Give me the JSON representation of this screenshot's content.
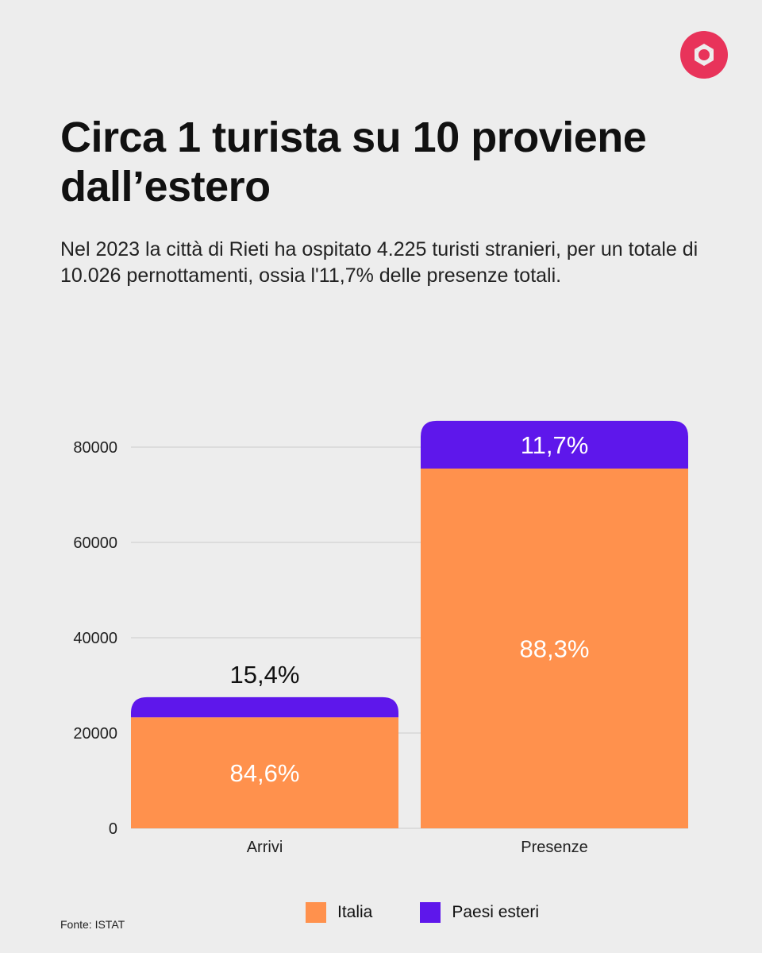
{
  "header": {
    "title": "Circa 1 turista su 10 proviene dall’estero",
    "subtitle": "Nel 2023 la città di Rieti ha ospitato 4.225 turisti stranieri, per un totale di 10.026 pernottamenti, ossia l'11,7% delle presenze totali."
  },
  "colors": {
    "italia": "#ff914d",
    "esteri": "#5e17eb",
    "logo": "#e8335a",
    "grid": "#cccccc"
  },
  "chart_data": {
    "type": "bar",
    "stacked": true,
    "categories": [
      "Arrivi",
      "Presenze"
    ],
    "series": [
      {
        "name": "Italia",
        "values": [
          23300,
          75500
        ],
        "labels": [
          "84,6%",
          "88,3%"
        ]
      },
      {
        "name": "Paesi esteri",
        "values": [
          4225,
          10026
        ],
        "labels": [
          "15,4%",
          "11,7%"
        ]
      }
    ],
    "yticks": [
      0,
      20000,
      40000,
      60000,
      80000
    ],
    "ylim": [
      0,
      80000
    ],
    "grid": true,
    "legend": "bottom"
  },
  "legend": {
    "items": [
      {
        "label": "Italia",
        "color": "#ff914d"
      },
      {
        "label": "Paesi esteri",
        "color": "#5e17eb"
      }
    ]
  },
  "footer": {
    "source": "Fonte: ISTAT"
  }
}
